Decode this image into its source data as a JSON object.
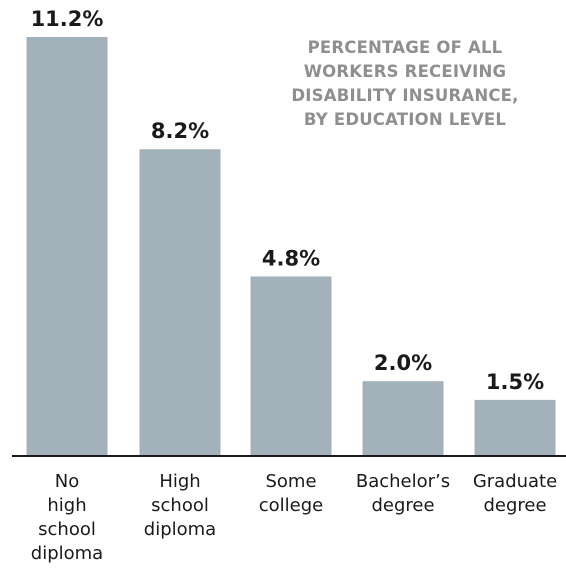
{
  "chart_data": {
    "type": "bar",
    "title_lines": [
      "PERCENTAGE OF ALL",
      "WORKERS RECEIVING",
      "DISABILITY INSURANCE,",
      "BY EDUCATION LEVEL"
    ],
    "categories": [
      [
        "No",
        "high",
        "school",
        "diploma"
      ],
      [
        "High",
        "school",
        "diploma"
      ],
      [
        "Some",
        "college"
      ],
      [
        "Bachelor’s",
        "degree"
      ],
      [
        "Graduate",
        "degree"
      ]
    ],
    "values": [
      11.2,
      8.2,
      4.8,
      2.0,
      1.5
    ],
    "value_labels": [
      "11.2%",
      "8.2%",
      "4.8%",
      "2.0%",
      "1.5%"
    ],
    "ylim": [
      0,
      11.2
    ],
    "grid": false,
    "legend": "none",
    "bar_color": "#a3b1bb",
    "axis_color": "#1a1a1a"
  }
}
